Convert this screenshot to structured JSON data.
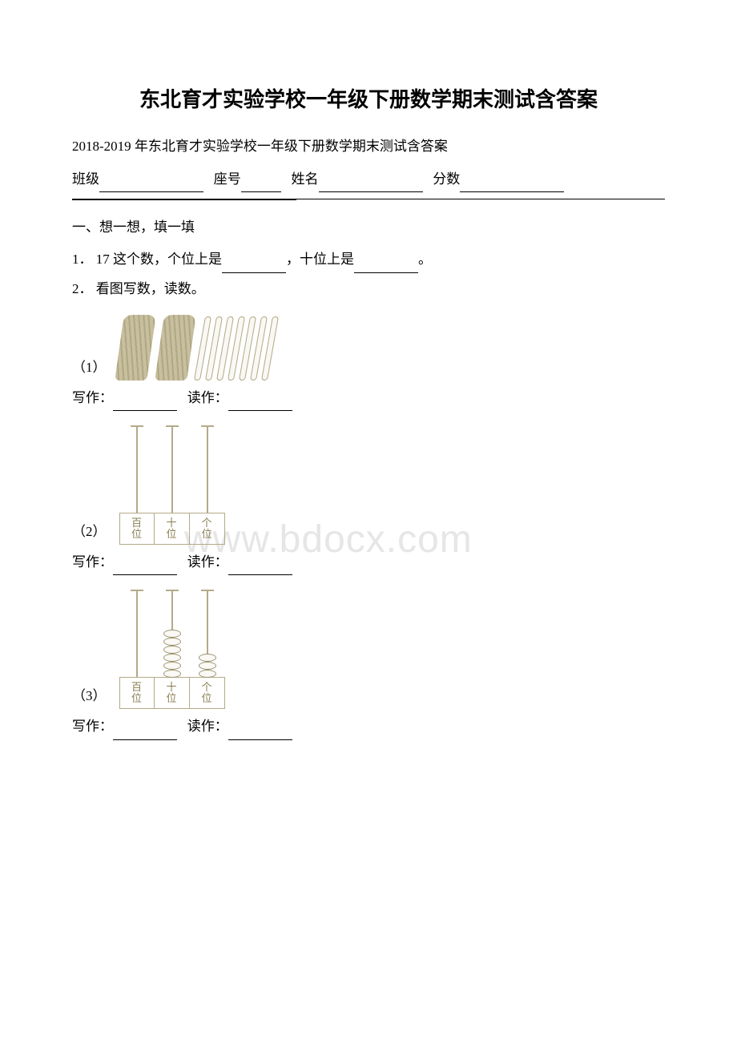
{
  "title": "东北育才实验学校一年级下册数学期末测试含答案",
  "subtitle": "2018-2019 年东北育才实验学校一年级下册数学期末测试含答案",
  "formLine": {
    "class": "班级",
    "seat": "座号",
    "name": "姓名",
    "score": "分数"
  },
  "section1": {
    "heading": "一、想一想，填一填",
    "q1": {
      "num": "1．",
      "textA": "17 这个数，个位上是",
      "textB": "，十位上是",
      "textC": "。"
    },
    "q2": {
      "num": "2．",
      "text": "看图写数，读数。"
    },
    "sub1": {
      "paren": "（1）"
    },
    "sub2": {
      "paren": "（2）"
    },
    "sub3": {
      "paren": "（3）"
    },
    "writeRead": {
      "write": "写作：",
      "read": "读作："
    }
  },
  "sticks": {
    "bundles": 2,
    "singles": 7,
    "bundleColor": "#c8bfa0",
    "stickBorder": "#b0a882"
  },
  "abacus": {
    "places": [
      "百",
      "十",
      "个"
    ],
    "placeSuffix": "位",
    "rodColor": "#b4aa88",
    "beadBorder": "#9a926f",
    "labelColor": "#8a7d50",
    "fig2": {
      "rodHeight": 110,
      "beads": [
        0,
        0,
        0
      ]
    },
    "fig3": {
      "rodHeight": 110,
      "beads": [
        0,
        6,
        3
      ]
    }
  },
  "watermark": "www.bdocx.com"
}
